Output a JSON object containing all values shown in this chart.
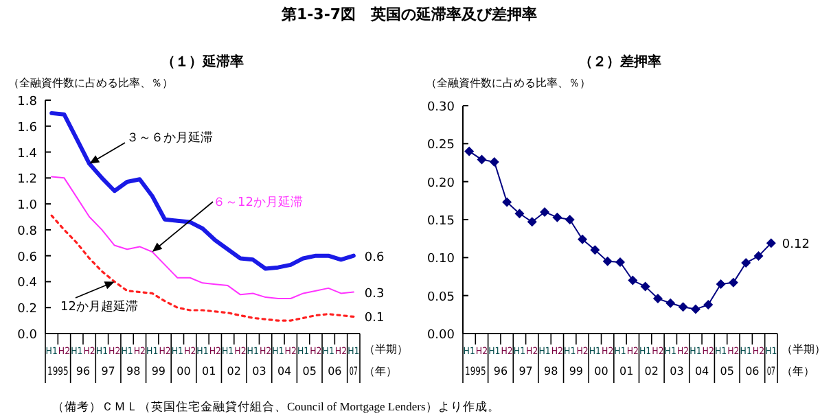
{
  "chart_data": [
    {
      "type": "line",
      "title": "第1-3-7図　英国の延滞率及び差押率",
      "subtitle": "（１）延滞率",
      "ylabel": "（全融資件数に占める比率、％）",
      "xlabel": "（半期）",
      "categories": [
        "H1",
        "H2",
        "H1",
        "H2",
        "H1",
        "H2",
        "H1",
        "H2",
        "H1",
        "H2",
        "H1",
        "H2",
        "H1",
        "H2",
        "H1",
        "H2",
        "H1",
        "H2",
        "H1",
        "H2",
        "H1",
        "H2",
        "H1",
        "H2",
        "H1"
      ],
      "annotations": [
        "1995",
        "96",
        "97",
        "98",
        "99",
        "00",
        "01",
        "02",
        "03",
        "04",
        "05",
        "06",
        "07",
        "（年）",
        "（備考）ＣＭＬ（英国住宅金融貸付組合、Council of Mortgage Lenders）より作成。"
      ],
      "ylim": [
        0,
        1.8
      ],
      "yticks": [
        {
          "value": 0,
          "label": "0.0"
        },
        0.2,
        0.4,
        0.6,
        0.8,
        {
          "value": 1,
          "label": "1.0"
        },
        1.2,
        1.4,
        1.6,
        1.8
      ],
      "grid": false,
      "marker": "none",
      "series": [
        {
          "name": "３～６か月延滞",
          "color": "#1a1ae6",
          "line_style": "solid",
          "values": [
            1.7,
            1.69,
            1.5,
            1.31,
            1.2,
            1.1,
            1.17,
            1.19,
            1.06,
            0.88,
            0.87,
            0.86,
            0.81,
            0.72,
            0.65,
            0.58,
            0.57,
            0.5,
            0.51,
            0.53,
            0.58,
            0.6,
            0.6,
            0.57,
            0.6
          ],
          "value_labels": [
            null,
            null,
            null,
            null,
            null,
            null,
            null,
            null,
            null,
            null,
            null,
            null,
            null,
            null,
            null,
            null,
            null,
            null,
            null,
            null,
            null,
            null,
            null,
            null,
            "0.6"
          ]
        },
        {
          "name": "６～12か月延滞",
          "color": "#ff33ff",
          "line_style": "solid",
          "values": [
            1.21,
            1.2,
            1.05,
            0.9,
            0.8,
            0.68,
            0.65,
            0.67,
            0.63,
            0.53,
            0.43,
            0.43,
            0.39,
            0.38,
            0.37,
            0.3,
            0.31,
            0.28,
            0.27,
            0.27,
            0.31,
            0.33,
            0.35,
            0.31,
            0.32
          ],
          "value_labels": [
            null,
            null,
            null,
            null,
            null,
            null,
            null,
            null,
            null,
            null,
            null,
            null,
            null,
            null,
            null,
            null,
            null,
            null,
            null,
            null,
            null,
            null,
            null,
            null,
            "0.3"
          ]
        },
        {
          "name": "12か月超延滞",
          "color": "#ff2020",
          "line_style": "dotted",
          "values": [
            0.91,
            0.8,
            0.7,
            0.58,
            0.48,
            0.4,
            0.33,
            0.32,
            0.31,
            0.25,
            0.2,
            0.18,
            0.18,
            0.17,
            0.16,
            0.14,
            0.12,
            0.11,
            0.1,
            0.1,
            0.12,
            0.14,
            0.15,
            0.14,
            0.13
          ],
          "value_labels": [
            null,
            null,
            null,
            null,
            null,
            null,
            null,
            null,
            null,
            null,
            null,
            null,
            null,
            null,
            null,
            null,
            null,
            null,
            null,
            null,
            null,
            null,
            null,
            null,
            "0.1"
          ]
        }
      ]
    },
    {
      "type": "line",
      "subtitle": "（２）差押率",
      "ylabel": "（全融資件数に占める比率、％）",
      "xlabel": "（半期）",
      "categories": [
        "H1",
        "H2",
        "H1",
        "H2",
        "H1",
        "H2",
        "H1",
        "H2",
        "H1",
        "H2",
        "H1",
        "H2",
        "H1",
        "H2",
        "H1",
        "H2",
        "H1",
        "H2",
        "H1",
        "H2",
        "H1",
        "H2",
        "H1",
        "H2",
        "H1"
      ],
      "annotations": [
        "1995",
        "96",
        "97",
        "98",
        "99",
        "00",
        "01",
        "02",
        "03",
        "04",
        "05",
        "06",
        "07",
        "（年）"
      ],
      "ylim": [
        0,
        0.3
      ],
      "yticks": [
        {
          "value": 0,
          "label": "0.00"
        },
        {
          "value": 0.05,
          "label": "0.05"
        },
        {
          "value": 0.1,
          "label": "0.10"
        },
        {
          "value": 0.15,
          "label": "0.15"
        },
        {
          "value": 0.2,
          "label": "0.20"
        },
        {
          "value": 0.25,
          "label": "0.25"
        },
        {
          "value": 0.3,
          "label": "0.30"
        }
      ],
      "grid": false,
      "marker": "diamond",
      "series": [
        {
          "color": "#000080",
          "line_style": "solid",
          "values": [
            0.24,
            0.229,
            0.226,
            0.173,
            0.158,
            0.147,
            0.16,
            0.153,
            0.15,
            0.124,
            0.11,
            0.095,
            0.094,
            0.07,
            0.062,
            0.046,
            0.04,
            0.035,
            0.032,
            0.038,
            0.065,
            0.067,
            0.093,
            0.102,
            0.119
          ],
          "value_labels": [
            null,
            null,
            null,
            null,
            null,
            null,
            null,
            null,
            null,
            null,
            null,
            null,
            null,
            null,
            null,
            null,
            null,
            null,
            null,
            null,
            null,
            null,
            null,
            null,
            "0.12"
          ]
        }
      ]
    }
  ]
}
